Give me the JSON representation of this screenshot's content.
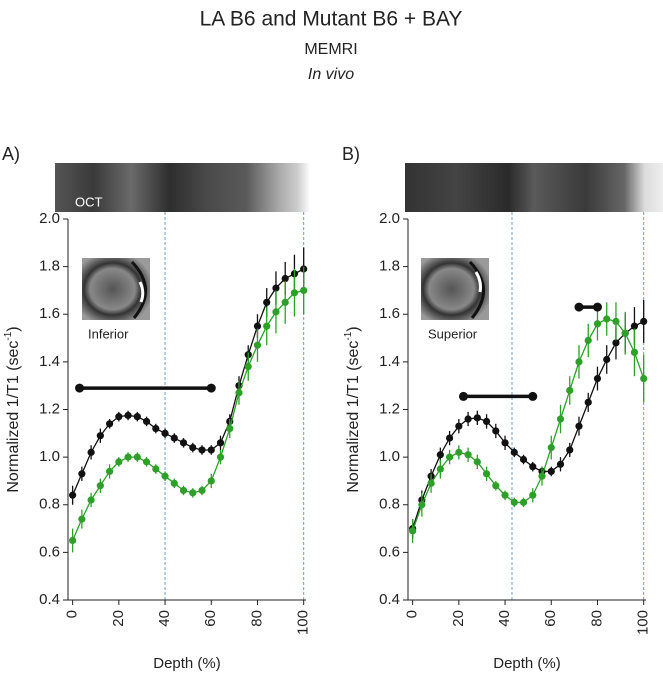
{
  "figure": {
    "title": "LA B6 and Mutant B6 + BAY",
    "subtitle": "MEMRI",
    "note": "In vivo"
  },
  "chart_data": [
    {
      "type": "line",
      "panel": "A)",
      "strip_label": "OCT",
      "inset_label": "Inferior",
      "xlabel": "Depth (%)",
      "ylabel": "Normalized 1/T1 (sec",
      "ylabel_sup": "-1",
      "ylabel_end": ")",
      "x": [
        0,
        4,
        8,
        12,
        16,
        20,
        24,
        28,
        32,
        36,
        40,
        44,
        48,
        52,
        56,
        60,
        64,
        68,
        72,
        76,
        80,
        84,
        88,
        92,
        96,
        100
      ],
      "series": [
        {
          "color": "#111111",
          "values": [
            0.84,
            0.93,
            1.02,
            1.09,
            1.14,
            1.17,
            1.175,
            1.17,
            1.15,
            1.12,
            1.1,
            1.08,
            1.06,
            1.04,
            1.03,
            1.03,
            1.06,
            1.15,
            1.3,
            1.43,
            1.55,
            1.65,
            1.71,
            1.75,
            1.77,
            1.79
          ],
          "errors": [
            0.04,
            0.03,
            0.03,
            0.03,
            0.02,
            0.02,
            0.02,
            0.02,
            0.02,
            0.02,
            0.02,
            0.02,
            0.02,
            0.02,
            0.02,
            0.02,
            0.03,
            0.03,
            0.04,
            0.04,
            0.05,
            0.06,
            0.07,
            0.07,
            0.08,
            0.09
          ]
        },
        {
          "color": "#2ea02a",
          "values": [
            0.65,
            0.74,
            0.82,
            0.88,
            0.94,
            0.98,
            1.0,
            1.0,
            0.98,
            0.95,
            0.92,
            0.89,
            0.86,
            0.85,
            0.86,
            0.9,
            1.0,
            1.12,
            1.27,
            1.38,
            1.47,
            1.55,
            1.61,
            1.65,
            1.69,
            1.7
          ],
          "errors": [
            0.05,
            0.04,
            0.03,
            0.03,
            0.03,
            0.02,
            0.02,
            0.02,
            0.02,
            0.02,
            0.02,
            0.02,
            0.02,
            0.02,
            0.02,
            0.03,
            0.03,
            0.04,
            0.05,
            0.06,
            0.07,
            0.08,
            0.09,
            0.09,
            0.1,
            0.1
          ]
        }
      ],
      "sig_bars": [
        {
          "x": [
            3,
            60
          ],
          "y": 1.29
        }
      ],
      "vlines": [
        40,
        100
      ],
      "xlim": [
        -2,
        101
      ],
      "ylim": [
        0.4,
        2.0
      ],
      "xticks": [
        0,
        20,
        40,
        60,
        80,
        100
      ],
      "yticks": [
        0.4,
        0.6,
        0.8,
        {
          "value": 1,
          "label": "1.0"
        },
        1.2,
        1.4,
        1.6,
        1.8,
        {
          "value": 2,
          "label": "2.0"
        }
      ]
    },
    {
      "type": "line",
      "panel": "B)",
      "inset_label": "Superior",
      "xlabel": "Depth (%)",
      "ylabel": "Normalized 1/T1 (sec",
      "ylabel_sup": "-1",
      "ylabel_end": ")",
      "x": [
        0,
        4,
        8,
        12,
        16,
        20,
        24,
        28,
        32,
        36,
        40,
        44,
        48,
        52,
        56,
        60,
        64,
        68,
        72,
        76,
        80,
        84,
        88,
        92,
        96,
        100
      ],
      "series": [
        {
          "color": "#111111",
          "values": [
            0.7,
            0.82,
            0.92,
            1.01,
            1.08,
            1.13,
            1.16,
            1.165,
            1.15,
            1.11,
            1.06,
            1.02,
            0.99,
            0.96,
            0.94,
            0.94,
            0.97,
            1.03,
            1.13,
            1.23,
            1.33,
            1.41,
            1.48,
            1.52,
            1.55,
            1.57
          ],
          "errors": [
            0.04,
            0.04,
            0.03,
            0.03,
            0.03,
            0.03,
            0.03,
            0.03,
            0.03,
            0.03,
            0.03,
            0.02,
            0.02,
            0.02,
            0.02,
            0.02,
            0.03,
            0.03,
            0.04,
            0.04,
            0.05,
            0.06,
            0.07,
            0.08,
            0.08,
            0.09
          ]
        },
        {
          "color": "#2ea02a",
          "values": [
            0.69,
            0.8,
            0.89,
            0.95,
            1.0,
            1.02,
            1.01,
            0.98,
            0.93,
            0.88,
            0.84,
            0.81,
            0.81,
            0.84,
            0.92,
            1.04,
            1.16,
            1.28,
            1.4,
            1.49,
            1.56,
            1.58,
            1.57,
            1.52,
            1.44,
            1.33
          ],
          "errors": [
            0.05,
            0.05,
            0.04,
            0.04,
            0.03,
            0.03,
            0.03,
            0.03,
            0.03,
            0.02,
            0.02,
            0.02,
            0.02,
            0.03,
            0.04,
            0.05,
            0.06,
            0.06,
            0.07,
            0.07,
            0.07,
            0.07,
            0.08,
            0.09,
            0.1,
            0.1
          ]
        }
      ],
      "sig_bars": [
        {
          "x": [
            22,
            52
          ],
          "y": 1.255
        },
        {
          "x": [
            72,
            80
          ],
          "y": 1.63
        }
      ],
      "vlines": [
        43,
        100
      ],
      "xlim": [
        -2,
        101
      ],
      "ylim": [
        0.4,
        2.0
      ],
      "xticks": [
        0,
        20,
        40,
        60,
        80,
        100
      ],
      "yticks": [
        0.4,
        0.6,
        0.8,
        {
          "value": 1,
          "label": "1.0"
        },
        1.2,
        1.4,
        1.6,
        1.8,
        {
          "value": 2,
          "label": "2.0"
        }
      ]
    }
  ]
}
